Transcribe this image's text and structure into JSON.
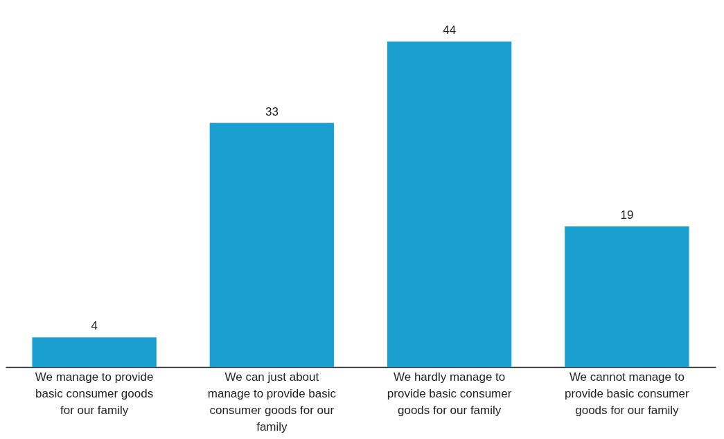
{
  "chart_data": {
    "type": "bar",
    "categories": [
      "We manage to provide basic consumer goods for our family",
      "We can just about manage to provide basic consumer goods for our family",
      "We hardly manage to provide basic consumer goods for our family",
      "We cannot manage to provide basic consumer goods for our family"
    ],
    "values": [
      4,
      33,
      44,
      19
    ],
    "color": "#1a9fd0",
    "data_labels": true,
    "tick_labels": "x"
  }
}
